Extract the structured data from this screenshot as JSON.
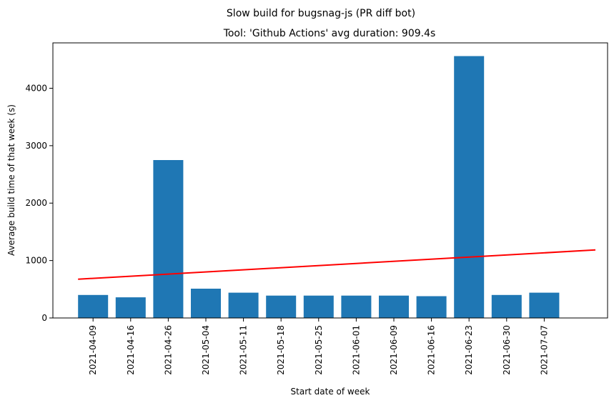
{
  "chart_data": {
    "type": "bar",
    "suptitle": "Slow build for bugsnag-js (PR diff bot)",
    "title": "Tool: 'Github Actions' avg duration: 909.4s",
    "xlabel": "Start date of week",
    "ylabel": "Average build time of that week (s)",
    "categories": [
      "2021-04-09",
      "2021-04-16",
      "2021-04-26",
      "2021-05-04",
      "2021-05-11",
      "2021-05-18",
      "2021-05-25",
      "2021-06-01",
      "2021-06-09",
      "2021-06-16",
      "2021-06-23",
      "2021-06-30",
      "2021-07-07"
    ],
    "values": [
      400,
      360,
      2750,
      510,
      440,
      390,
      390,
      390,
      390,
      380,
      4560,
      400,
      440
    ],
    "yticks": [
      0,
      1000,
      2000,
      3000,
      4000
    ],
    "ylim": [
      0,
      4790
    ],
    "bar_color": "#1f77b4",
    "trend": {
      "color": "#ff0000",
      "start": 675,
      "end": 1185
    },
    "grid": false
  }
}
